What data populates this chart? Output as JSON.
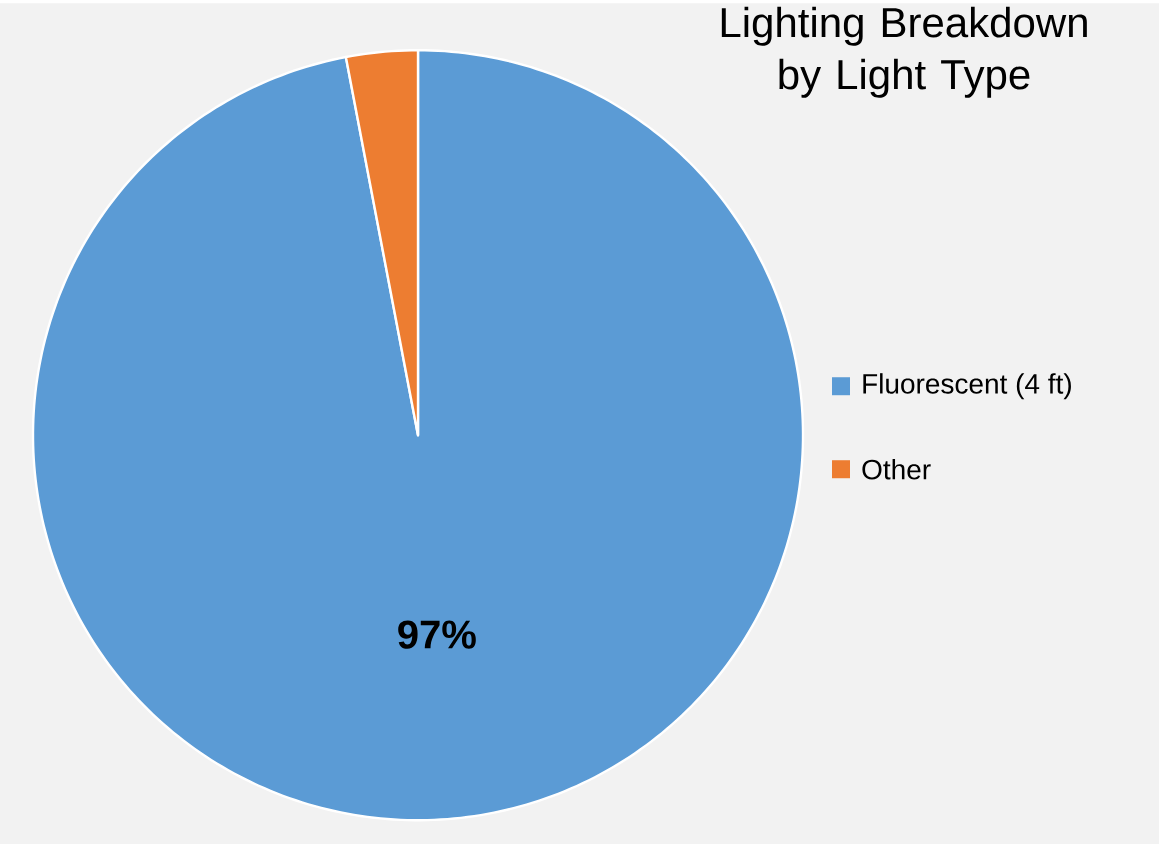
{
  "chart_data": {
    "type": "pie",
    "title": "Lighting Breakdown by Light Type",
    "categories": [
      "Fluorescent (4 ft)",
      "Other"
    ],
    "values": [
      97,
      3
    ],
    "colors": [
      "#5b9bd5",
      "#ed7d31"
    ],
    "value_labels": [
      "97%",
      null
    ],
    "legend": "right"
  }
}
